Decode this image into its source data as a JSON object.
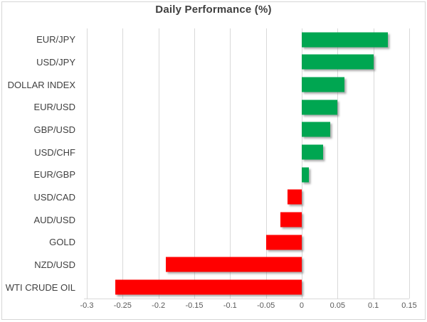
{
  "chart_data": {
    "type": "bar",
    "orientation": "horizontal",
    "title": "Daily Performance (%)",
    "xlabel": "",
    "ylabel": "",
    "categories": [
      "EUR/JPY",
      "USD/JPY",
      "DOLLAR INDEX",
      "EUR/USD",
      "GBP/USD",
      "USD/CHF",
      "EUR/GBP",
      "USD/CAD",
      "AUD/USD",
      "GOLD",
      "NZD/USD",
      "WTI CRUDE OIL"
    ],
    "values": [
      0.12,
      0.1,
      0.06,
      0.05,
      0.04,
      0.03,
      0.01,
      -0.02,
      -0.03,
      -0.05,
      -0.19,
      -0.26
    ],
    "xlim": [
      -0.3,
      0.15
    ],
    "xticks": [
      -0.3,
      -0.25,
      -0.2,
      -0.15,
      -0.1,
      -0.05,
      0,
      0.05,
      0.1,
      0.15
    ],
    "xtick_labels": [
      "-0.3",
      "-0.25",
      "-0.2",
      "-0.15",
      "-0.1",
      "-0.05",
      "0",
      "0.05",
      "0.1",
      "0.15"
    ],
    "grid": true,
    "legend": false,
    "positive_color": "#00A651",
    "negative_color": "#FF0000",
    "gridline_color": "#D9D9D9",
    "title_color": "#404040",
    "label_color": "#404040",
    "tick_color": "#595959"
  }
}
